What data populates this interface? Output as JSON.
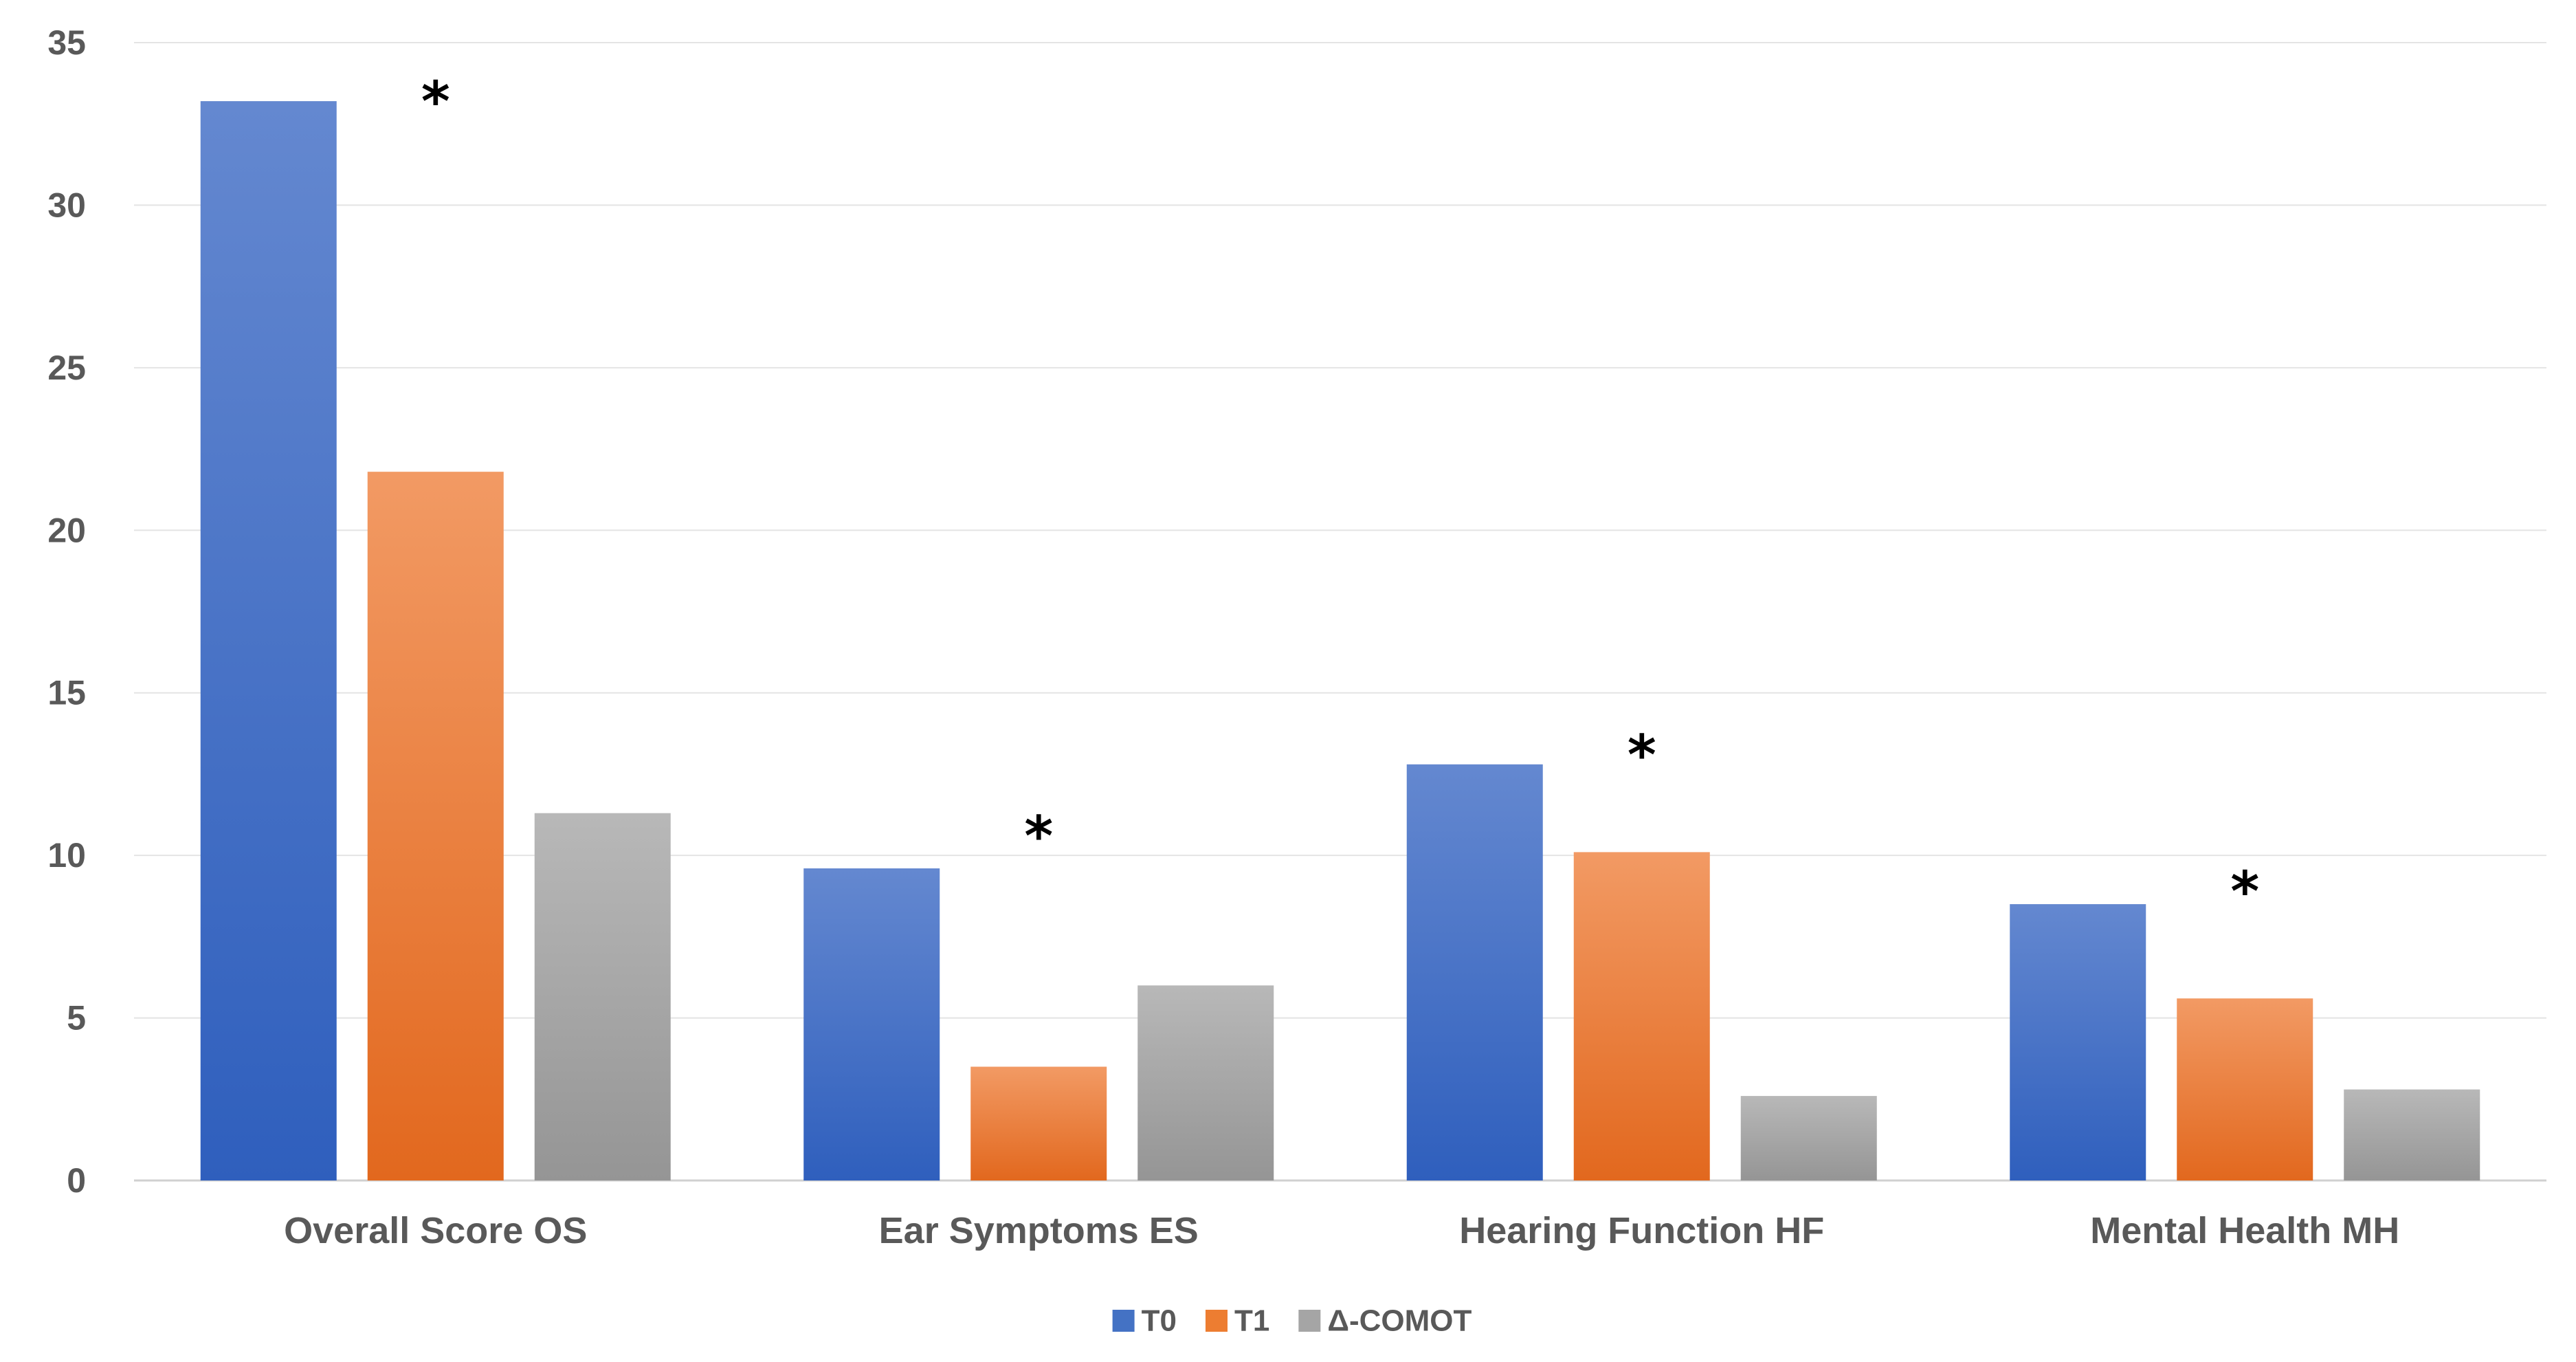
{
  "chart_data": {
    "type": "bar",
    "title": "",
    "xlabel": "",
    "ylabel": "",
    "ylim": [
      0,
      35
    ],
    "yticks": [
      0,
      5,
      10,
      15,
      20,
      25,
      30,
      35
    ],
    "grid": true,
    "legend_position": "bottom",
    "categories": [
      "Overall Score OS",
      "Ear Symptoms ES",
      "Hearing Function HF",
      "Mental Health MH"
    ],
    "series": [
      {
        "name": "T0",
        "values": [
          33.2,
          9.6,
          12.8,
          8.5
        ],
        "color": "#4472C4"
      },
      {
        "name": "T1",
        "values": [
          21.8,
          3.5,
          10.1,
          5.6
        ],
        "color": "#ED7D31"
      },
      {
        "name": "Δ-COMOT",
        "values": [
          11.3,
          6.0,
          2.6,
          2.8
        ],
        "color": "#A5A5A5"
      }
    ],
    "annotations": [
      {
        "text": "*",
        "category_index": 0,
        "y": 33.7
      },
      {
        "text": "*",
        "category_index": 1,
        "y": 11.1
      },
      {
        "text": "*",
        "category_index": 2,
        "y": 13.6
      },
      {
        "text": "*",
        "category_index": 3,
        "y": 9.4
      }
    ]
  }
}
